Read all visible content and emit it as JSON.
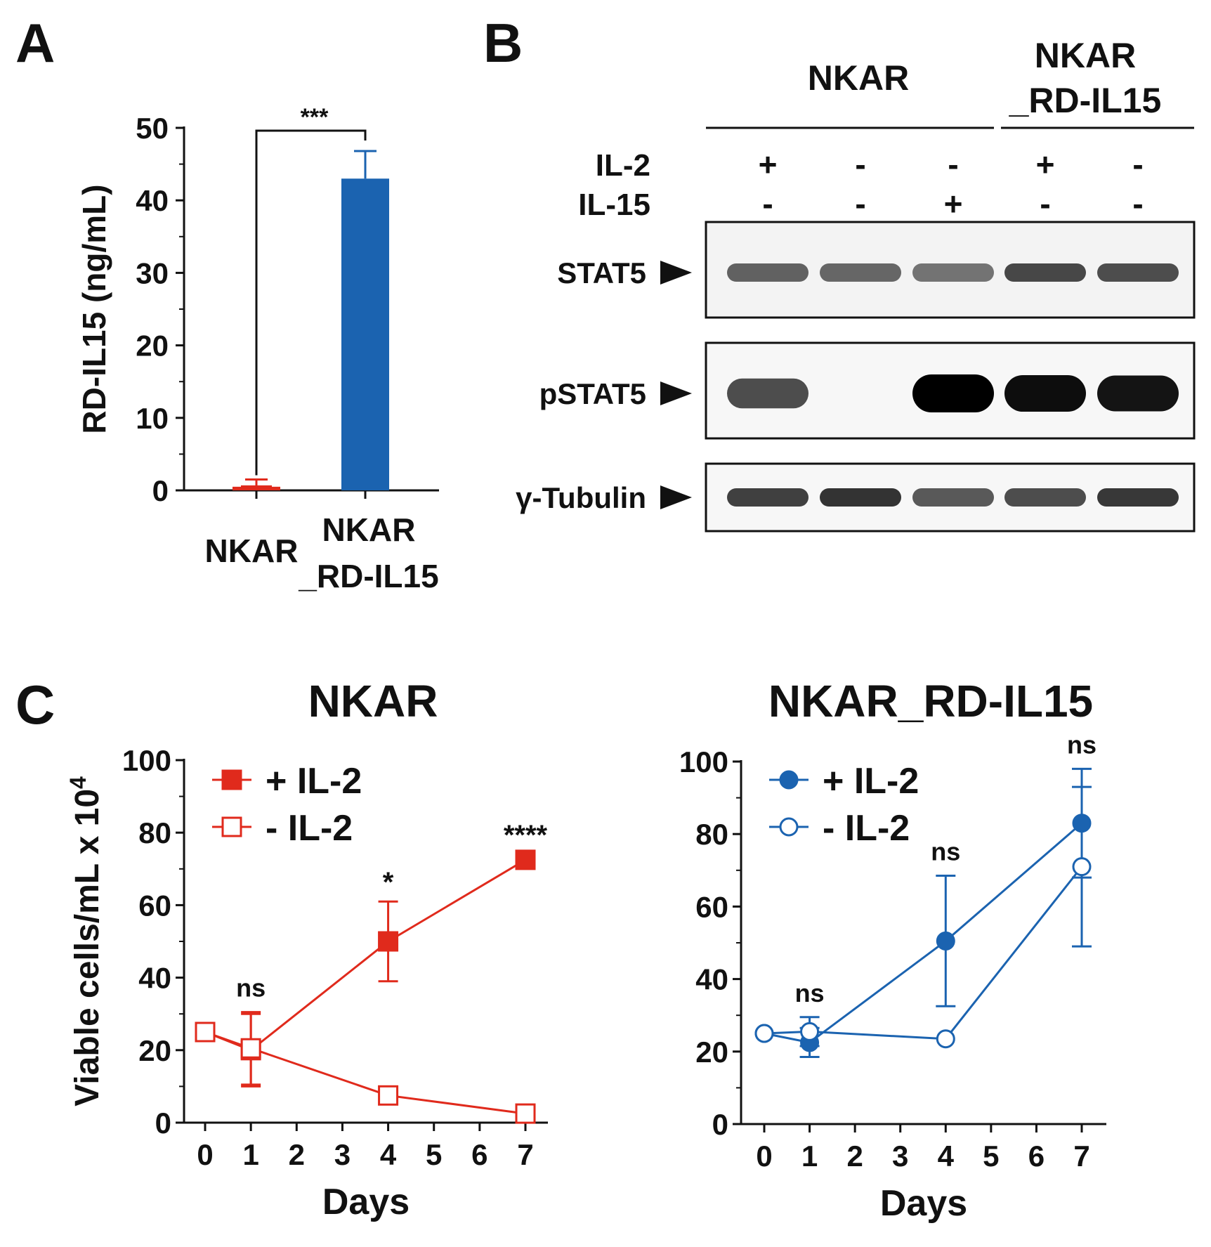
{
  "panel_labels": {
    "a": "A",
    "b": "B",
    "c": "C"
  },
  "colors": {
    "red": "#e02a1c",
    "blue": "#1b63b0",
    "black": "#111111"
  },
  "chart_data": [
    {
      "id": "A",
      "type": "bar",
      "categories": [
        "NKAR",
        "NKAR\n_RD-IL15"
      ],
      "category_lines": [
        [
          "NKAR"
        ],
        [
          "NKAR",
          "_RD-IL15"
        ]
      ],
      "values": [
        0.5,
        43
      ],
      "errors": [
        1.0,
        3.8
      ],
      "bar_colors": [
        "#e02a1c",
        "#1b63b0"
      ],
      "ylabel": "RD-IL15  (ng/mL)",
      "ylim": [
        0,
        50
      ],
      "yticks": [
        0,
        10,
        20,
        30,
        40,
        50
      ],
      "significance": "***",
      "grid": false
    },
    {
      "id": "B",
      "type": "blot",
      "group_labels": [
        [
          "NKAR"
        ],
        [
          "NKAR",
          "_RD-IL15"
        ]
      ],
      "conditions": [
        {
          "label": "IL-2",
          "values": [
            "+",
            "-",
            "-",
            "+",
            "-"
          ]
        },
        {
          "label": "IL-15",
          "values": [
            "-",
            "-",
            "+",
            "-",
            "-"
          ]
        }
      ],
      "rows": [
        "STAT5",
        "pSTAT5",
        "γ-Tubulin"
      ],
      "band_intensity": [
        [
          0.62,
          0.6,
          0.55,
          0.72,
          0.7
        ],
        [
          0.7,
          0.0,
          1.0,
          0.95,
          0.92
        ],
        [
          0.75,
          0.8,
          0.65,
          0.7,
          0.78
        ]
      ]
    },
    {
      "id": "C-left",
      "type": "line",
      "title": "NKAR",
      "xlabel": "Days",
      "ylabel": "Viable cells/mL x 10",
      "ylabel_sup": "4",
      "xlim": [
        0,
        7
      ],
      "ylim": [
        0,
        100
      ],
      "xticks": [
        0,
        1,
        2,
        3,
        4,
        5,
        6,
        7
      ],
      "yticks": [
        0,
        20,
        40,
        60,
        80,
        100
      ],
      "x": [
        0,
        1,
        4,
        7
      ],
      "series": [
        {
          "name": "+ IL-2",
          "marker": "filled-square",
          "values": [
            25,
            20,
            50,
            72.5
          ],
          "errors": [
            0,
            10,
            11,
            0
          ]
        },
        {
          "name": "- IL-2",
          "marker": "open-square",
          "values": [
            25,
            20.5,
            7.5,
            2.5
          ],
          "errors": [
            0,
            10,
            0,
            0
          ]
        }
      ],
      "annotations": [
        {
          "x": 1,
          "text": "ns"
        },
        {
          "x": 4,
          "text": "*"
        },
        {
          "x": 7,
          "text": "****"
        }
      ],
      "legend": "top-left",
      "grid": false
    },
    {
      "id": "C-right",
      "type": "line",
      "title": "NKAR_RD-IL15",
      "xlabel": "Days",
      "xlim": [
        0,
        7
      ],
      "ylim": [
        0,
        100
      ],
      "xticks": [
        0,
        1,
        2,
        3,
        4,
        5,
        6,
        7
      ],
      "yticks": [
        0,
        20,
        40,
        60,
        80,
        100
      ],
      "x": [
        0,
        1,
        4,
        7
      ],
      "series": [
        {
          "name": "+ IL-2",
          "marker": "filled-circle",
          "values": [
            25,
            22.5,
            50.5,
            83
          ],
          "errors": [
            0,
            4,
            18,
            15
          ]
        },
        {
          "name": "- IL-2",
          "marker": "open-circle",
          "values": [
            25,
            25.5,
            23.5,
            71
          ],
          "errors": [
            0,
            4,
            0,
            22
          ]
        }
      ],
      "annotations": [
        {
          "x": 1,
          "text": "ns"
        },
        {
          "x": 4,
          "text": "ns"
        },
        {
          "x": 7,
          "text": "ns"
        }
      ],
      "legend": "top-left",
      "grid": false
    }
  ]
}
